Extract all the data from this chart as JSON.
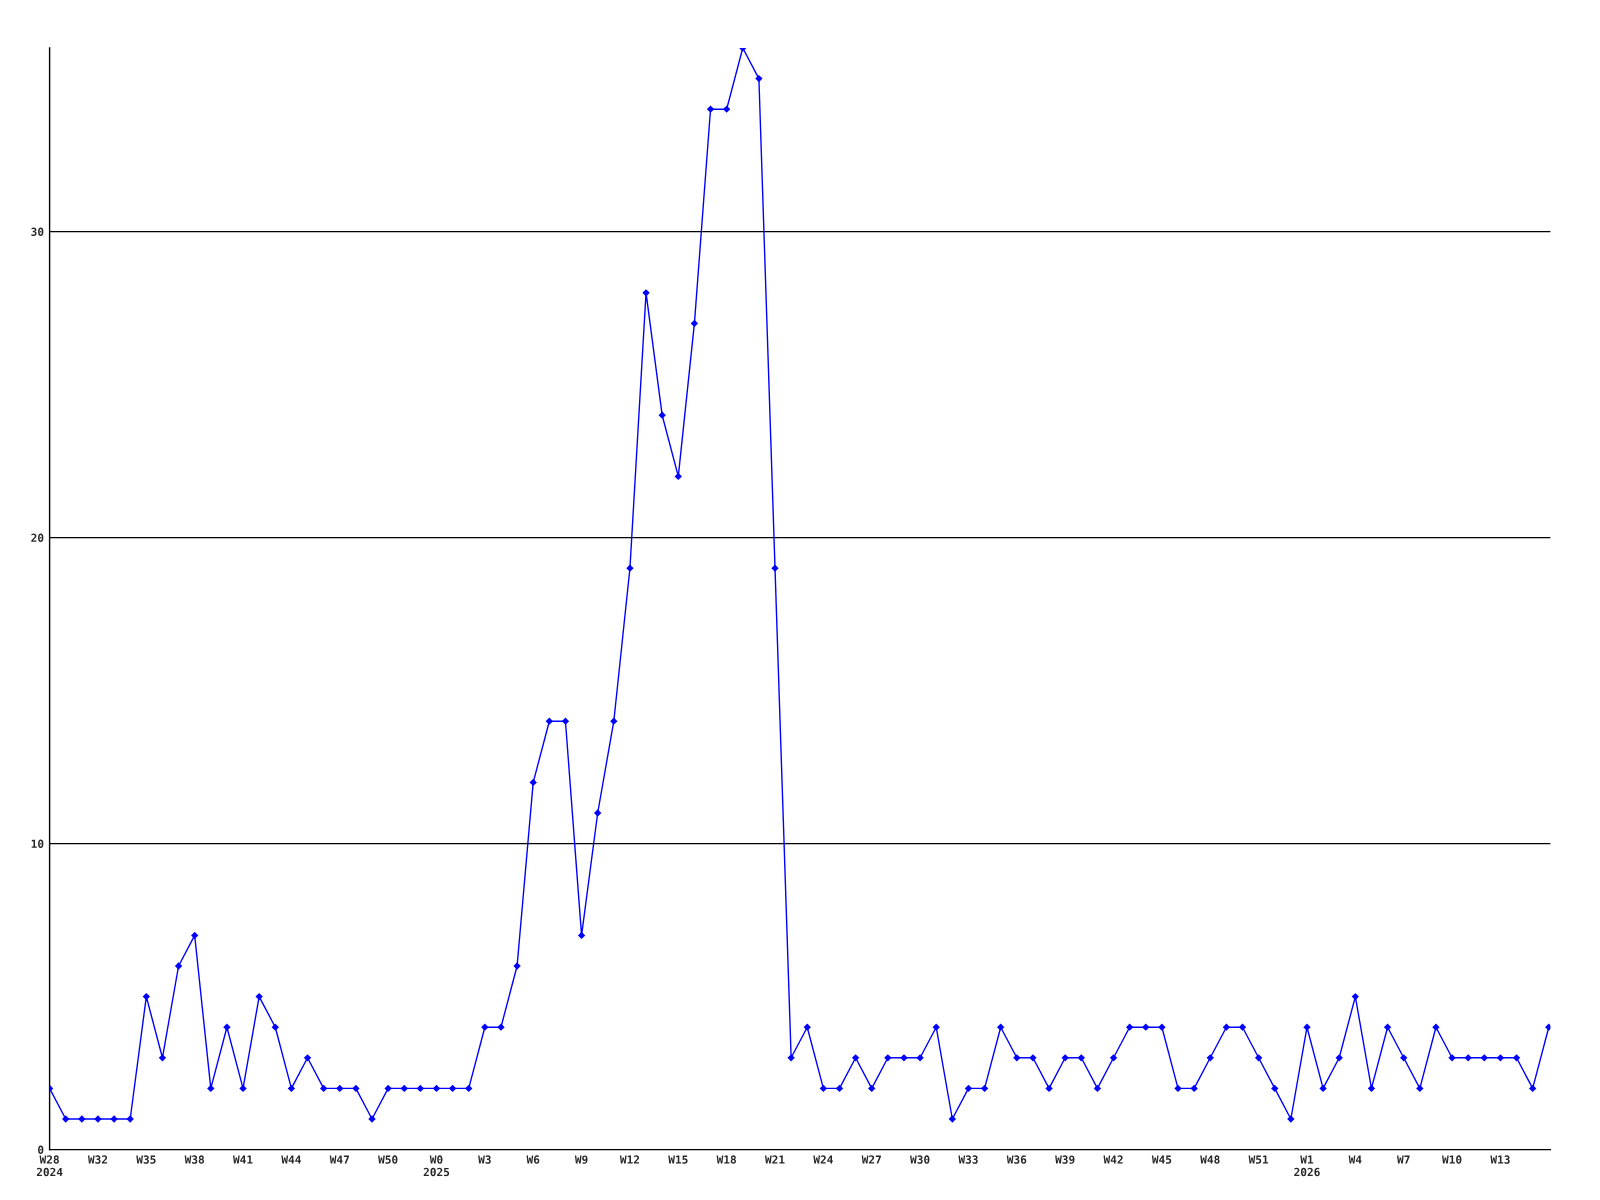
{
  "chart_data": {
    "type": "line",
    "categories": [
      "W28\n2024",
      null,
      null,
      "W32",
      null,
      null,
      "W35",
      null,
      null,
      "W38",
      null,
      null,
      "W41",
      null,
      null,
      "W44",
      null,
      null,
      "W47",
      null,
      null,
      "W50",
      null,
      null,
      "W0\n2025",
      null,
      null,
      "W3",
      null,
      null,
      "W6",
      null,
      null,
      "W9",
      null,
      null,
      "W12",
      null,
      null,
      "W15",
      null,
      null,
      "W18",
      null,
      null,
      "W21",
      null,
      null,
      "W24",
      null,
      null,
      "W27",
      null,
      null,
      "W30",
      null,
      null,
      "W33",
      null,
      null,
      "W36",
      null,
      null,
      "W39",
      null,
      null,
      "W42",
      null,
      null,
      "W45",
      null,
      null,
      "W48",
      null,
      null,
      "W51",
      null,
      null,
      "W1\n2026",
      null,
      null,
      "W4",
      null,
      null,
      "W7",
      null,
      null,
      "W10",
      null,
      null,
      "W13",
      null,
      null,
      null
    ],
    "series": [
      {
        "color": "#0000ff",
        "values": [
          2,
          1,
          1,
          1,
          1,
          1,
          5,
          3,
          6,
          7,
          2,
          4,
          2,
          5,
          4,
          2,
          3,
          2,
          2,
          2,
          1,
          2,
          2,
          2,
          2,
          2,
          2,
          4,
          4,
          6,
          12,
          14,
          14,
          7,
          11,
          14,
          19,
          28,
          24,
          22,
          27,
          34,
          34,
          36,
          35,
          19,
          3,
          4,
          2,
          2,
          3,
          2,
          3,
          3,
          3,
          4,
          1,
          2,
          2,
          4,
          3,
          3,
          2,
          3,
          3,
          2,
          3,
          4,
          4,
          4,
          2,
          2,
          3,
          4,
          4,
          3,
          2,
          1,
          4,
          2,
          3,
          5,
          2,
          4,
          3,
          2,
          4,
          3,
          3,
          3,
          3,
          3,
          2,
          4
        ]
      }
    ],
    "ylim": [
      0,
      36
    ],
    "yticks": [
      0,
      10,
      20,
      30
    ],
    "grid": "y",
    "marker": "diamond",
    "line_style": "solid"
  }
}
